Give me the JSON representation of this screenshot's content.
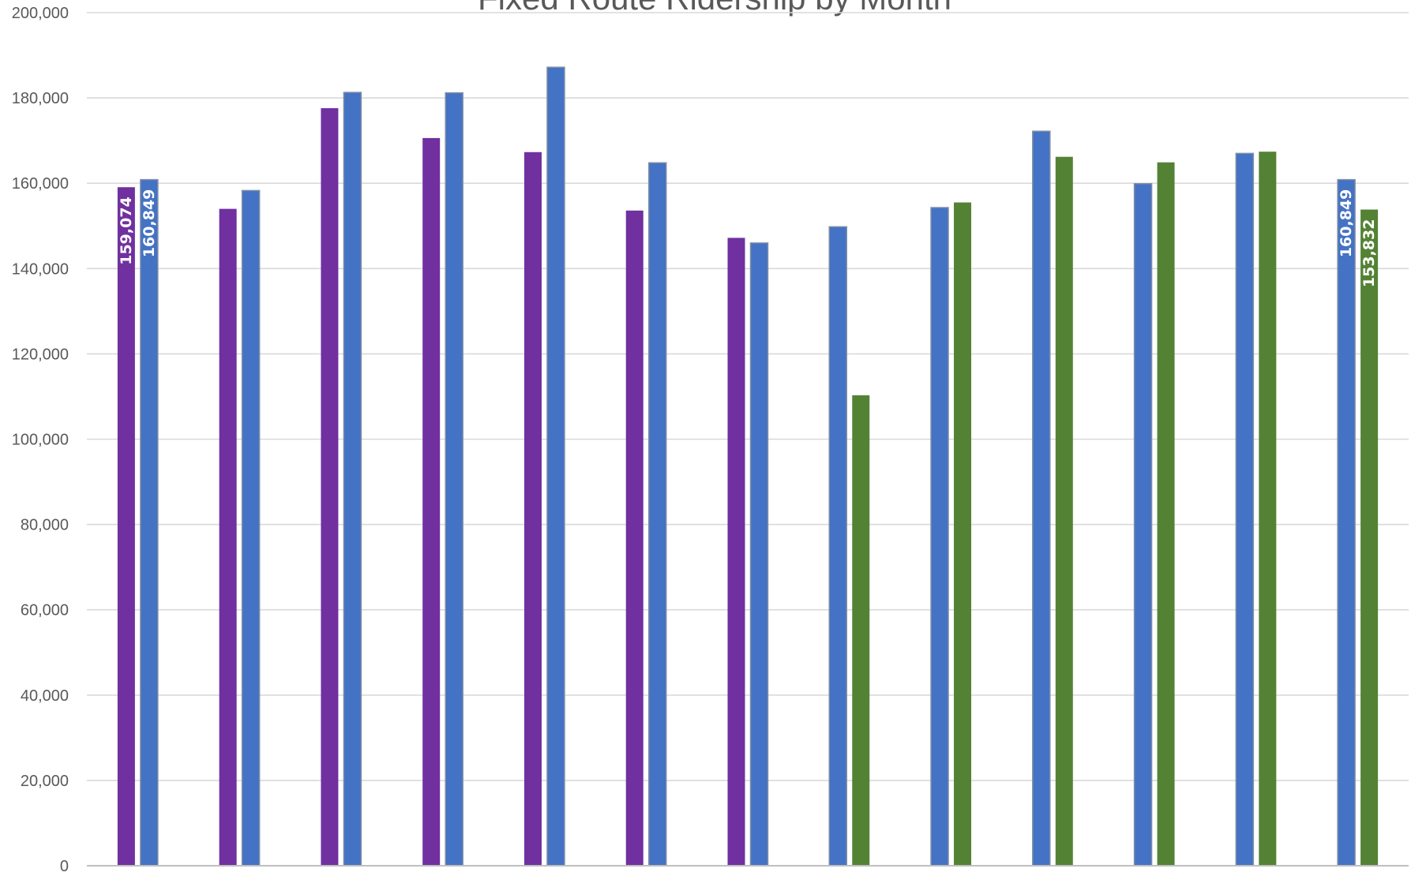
{
  "chart_data": {
    "type": "bar",
    "title": "Fixed Route Ridership by Month",
    "xlabel": "",
    "ylabel": "",
    "ylim": [
      0,
      200000
    ],
    "y_ticks": [
      "0",
      "20,000",
      "40,000",
      "60,000",
      "80,000",
      "100,000",
      "120,000",
      "140,000",
      "160,000",
      "180,000",
      "200,000"
    ],
    "grid": true,
    "categories": [
      "",
      "",
      "",
      "",
      "",
      "",
      "",
      "",
      "",
      "",
      "",
      "",
      ""
    ],
    "series": [
      {
        "color": "#7030a0",
        "values": [
          159074,
          154000,
          177600,
          170600,
          167300,
          153600,
          147200,
          null,
          null,
          null,
          null,
          null,
          null
        ]
      },
      {
        "color": "#4472c4",
        "values": [
          160849,
          158300,
          181300,
          181200,
          187200,
          164800,
          146000,
          149800,
          154300,
          172200,
          159900,
          167000,
          160849
        ]
      },
      {
        "color": "#548235",
        "values": [
          null,
          null,
          null,
          null,
          null,
          null,
          null,
          110300,
          155500,
          166200,
          164900,
          167400,
          153832
        ]
      }
    ],
    "data_labels": [
      {
        "series": 0,
        "index": 0,
        "text": "159,074"
      },
      {
        "series": 1,
        "index": 0,
        "text": "160,849"
      },
      {
        "series": 1,
        "index": 12,
        "text": "160,849"
      },
      {
        "series": 2,
        "index": 12,
        "text": "153,832"
      }
    ]
  }
}
